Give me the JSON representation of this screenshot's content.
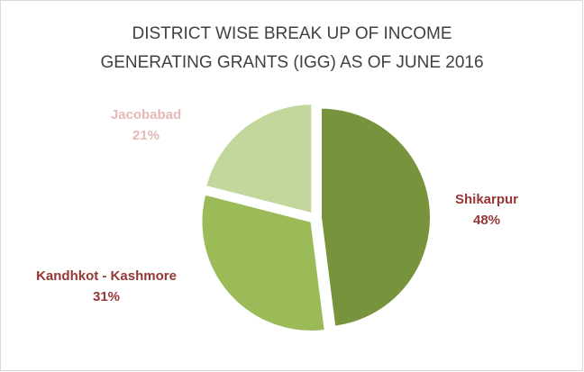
{
  "chart_data": {
    "type": "pie",
    "title": [
      "DISTRICT WISE  BREAK UP OF INCOME",
      "GENERATING GRANTS (IGG) AS OF JUNE 2016"
    ],
    "categories": [
      "Shikarpur",
      "Kandhkot - Kashmore",
      "Jacobabad"
    ],
    "values": [
      48,
      31,
      21
    ],
    "value_labels": [
      "48%",
      "31%",
      "21%"
    ],
    "colors": [
      "#77933c",
      "#9bbb59",
      "#c3d69b"
    ],
    "label_colors": [
      "#953735",
      "#953735",
      "#e6b9b8"
    ]
  }
}
